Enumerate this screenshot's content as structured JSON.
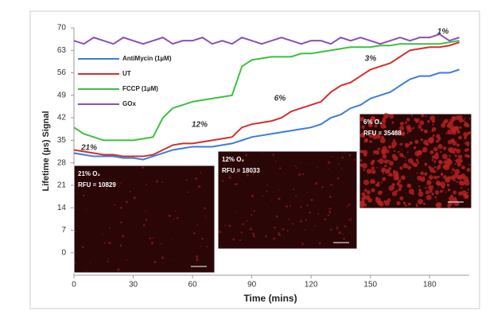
{
  "chart_data": {
    "type": "line",
    "xlabel": "Time (mins)",
    "ylabel": "Lifetime (µs) Signal",
    "x": [
      0,
      5,
      10,
      15,
      20,
      25,
      30,
      35,
      40,
      45,
      50,
      55,
      60,
      65,
      70,
      75,
      80,
      85,
      90,
      95,
      100,
      105,
      110,
      115,
      120,
      125,
      130,
      135,
      140,
      145,
      150,
      155,
      160,
      165,
      170,
      175,
      180,
      185,
      190,
      195
    ],
    "series": [
      {
        "name": "AntiMycin (1µM)",
        "color": "#3b7dd8",
        "values": [
          31,
          30.5,
          30,
          30,
          30,
          29.5,
          29.5,
          29,
          30,
          31,
          32,
          32.5,
          33,
          33,
          33,
          33.5,
          34,
          35,
          36,
          36.5,
          37,
          37.5,
          38,
          38.5,
          39,
          40,
          42,
          43,
          45,
          46,
          48,
          49,
          50,
          52,
          54,
          55,
          55,
          56,
          56,
          57
        ]
      },
      {
        "name": "UT",
        "color": "#d03030",
        "values": [
          32,
          31.5,
          31,
          30.5,
          30.5,
          30,
          30,
          30,
          30.5,
          32,
          33.5,
          34,
          34,
          34.5,
          35,
          35.5,
          36,
          39,
          40,
          40.5,
          41,
          42,
          44,
          45,
          46,
          47,
          50,
          52,
          53,
          55,
          57,
          58,
          59,
          61,
          63,
          63.5,
          64,
          64,
          64.5,
          65.5
        ]
      },
      {
        "name": "FCCP (1µM)",
        "color": "#3cc040",
        "values": [
          39,
          37,
          36,
          35,
          35,
          35,
          35,
          35.5,
          36,
          42,
          45,
          46,
          47,
          47.5,
          48,
          48.5,
          49,
          58,
          60,
          60.5,
          61,
          61,
          61,
          62,
          62,
          62.5,
          63,
          63.5,
          64,
          64,
          64,
          64.5,
          64.5,
          65,
          65,
          65,
          65,
          65,
          65.5,
          66
        ]
      },
      {
        "name": "GOx",
        "color": "#8a4fb8",
        "values": [
          66,
          65,
          67,
          66,
          65,
          67,
          66,
          65,
          66,
          67,
          65,
          66,
          66,
          67,
          65,
          66,
          65,
          67,
          66,
          65,
          66,
          67,
          66,
          65,
          66,
          66,
          65,
          67,
          66,
          67,
          66,
          65,
          66,
          67,
          66,
          67,
          67,
          68,
          66,
          67
        ]
      }
    ],
    "xlim": [
      0,
      200
    ],
    "xticks": [
      0,
      30,
      60,
      90,
      120,
      150,
      180
    ],
    "ylim": [
      -7,
      70
    ],
    "yticks": [
      0,
      7,
      14,
      21,
      28,
      35,
      42,
      49,
      56,
      63,
      70
    ],
    "annotations": [
      "21%",
      "12%",
      "6%",
      "3%",
      "1%"
    ],
    "insets": [
      {
        "label": "21% O₂",
        "rfu": "RFU = 10829"
      },
      {
        "label": "12% O₂",
        "rfu": "RFU = 18033"
      },
      {
        "label": "6% O₂",
        "rfu": "RFU = 35468"
      }
    ]
  }
}
